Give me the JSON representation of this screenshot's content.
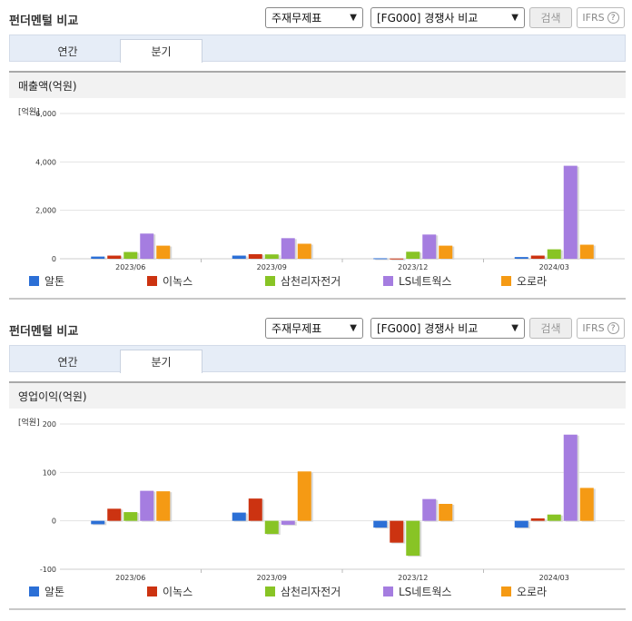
{
  "panels": [
    {
      "header": {
        "title": "펀더멘털 비교",
        "statement_select": "주재무제표",
        "compare_select": "[FG000] 경쟁사 비교",
        "search_label": "검색",
        "ifrs_label": "IFRS",
        "help_label": "?"
      },
      "tabs": [
        {
          "label": "연간",
          "active": false
        },
        {
          "label": "분기",
          "active": true
        }
      ],
      "chart_title": "매출액(억원)",
      "unit": "[억원]"
    },
    {
      "header": {
        "title": "펀더멘털 비교",
        "statement_select": "주재무제표",
        "compare_select": "[FG000] 경쟁사 비교",
        "search_label": "검색",
        "ifrs_label": "IFRS",
        "help_label": "?"
      },
      "tabs": [
        {
          "label": "연간",
          "active": false
        },
        {
          "label": "분기",
          "active": true
        }
      ],
      "chart_title": "영업이익(억원)",
      "unit": "[억원]"
    }
  ],
  "chart_data": [
    {
      "type": "bar",
      "title": "매출액(억원)",
      "categories": [
        "2023/06",
        "2023/09",
        "2023/12",
        "2024/03"
      ],
      "ylim": [
        0,
        6000
      ],
      "yticks": [
        0,
        2000,
        4000,
        6000
      ],
      "ytick_labels": [
        "0",
        "2,000",
        "4,000",
        "6,000"
      ],
      "series": [
        {
          "name": "알톤",
          "color": "#2b6fd6",
          "values": [
            90,
            130,
            20,
            70
          ]
        },
        {
          "name": "이녹스",
          "color": "#cc3311",
          "values": [
            130,
            190,
            10,
            130
          ]
        },
        {
          "name": "삼천리자전거",
          "color": "#88c425",
          "values": [
            280,
            180,
            290,
            390
          ]
        },
        {
          "name": "LS네트웍스",
          "color": "#a57de0",
          "values": [
            1040,
            850,
            1000,
            3840
          ]
        },
        {
          "name": "오로라",
          "color": "#f59a14",
          "values": [
            540,
            620,
            540,
            580
          ]
        }
      ]
    },
    {
      "type": "bar",
      "title": "영업이익(억원)",
      "categories": [
        "2023/06",
        "2023/09",
        "2023/12",
        "2024/03"
      ],
      "ylim": [
        -100,
        200
      ],
      "yticks": [
        -100,
        0,
        100,
        200
      ],
      "ytick_labels": [
        "-100",
        "0",
        "100",
        "200"
      ],
      "series": [
        {
          "name": "알톤",
          "color": "#2b6fd6",
          "values": [
            -7,
            17,
            -14,
            -14
          ]
        },
        {
          "name": "이녹스",
          "color": "#cc3311",
          "values": [
            25,
            46,
            -45,
            5
          ]
        },
        {
          "name": "삼천리자전거",
          "color": "#88c425",
          "values": [
            18,
            -27,
            -72,
            13
          ]
        },
        {
          "name": "LS네트웍스",
          "color": "#a57de0",
          "values": [
            62,
            -8,
            45,
            178
          ]
        },
        {
          "name": "오로라",
          "color": "#f59a14",
          "values": [
            61,
            102,
            35,
            68
          ]
        }
      ]
    }
  ]
}
